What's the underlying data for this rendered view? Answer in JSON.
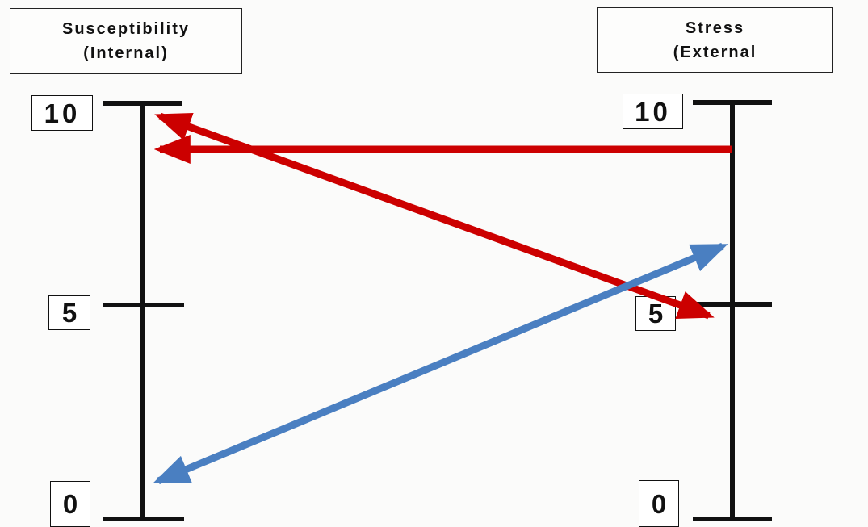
{
  "left_scale": {
    "title_line1": "Susceptibility",
    "title_line2": "(Internal)",
    "ticks": [
      "10",
      "5",
      "0"
    ]
  },
  "right_scale": {
    "title_line1": "Stress",
    "title_line2": "(External",
    "ticks": [
      "10",
      "5",
      "0"
    ]
  },
  "arrows": [
    {
      "name": "red-arrow-stress-to-susceptibility",
      "color": "#cc0000",
      "from": "stress 9",
      "to": "susceptibility 9"
    },
    {
      "name": "red-arrow-double-headed",
      "color": "#cc0000",
      "from": "susceptibility 10",
      "to": "stress 5"
    },
    {
      "name": "blue-arrow-double-headed",
      "color": "#4a7fc1",
      "from": "susceptibility 0",
      "to": "stress 7"
    }
  ],
  "colors": {
    "red": "#cc0000",
    "blue": "#4a7fc1",
    "axis": "#111111"
  }
}
